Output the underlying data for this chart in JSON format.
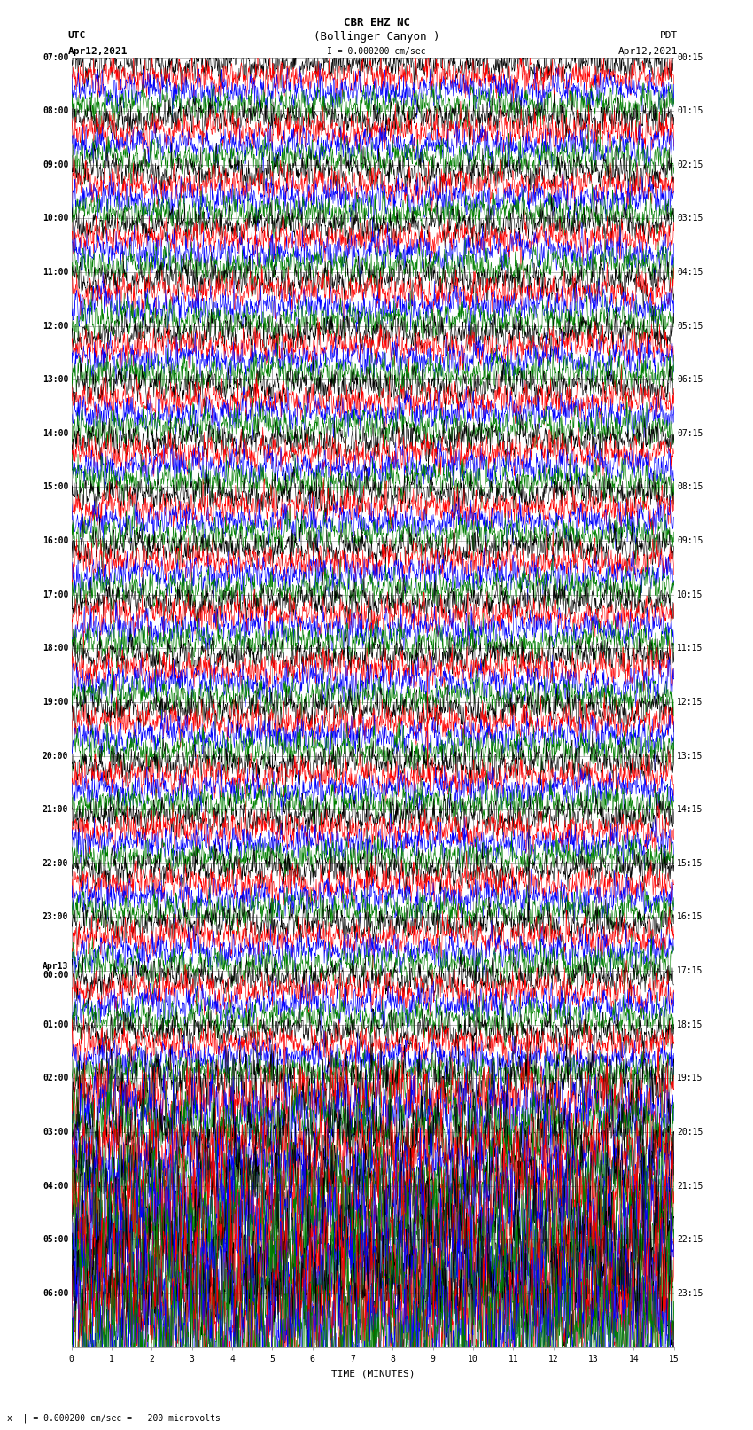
{
  "title_line1": "CBR EHZ NC",
  "title_line2": "(Bollinger Canyon )",
  "scale_label": "I = 0.000200 cm/sec",
  "left_header": "UTC",
  "left_date": "Apr12,2021",
  "right_header": "PDT",
  "right_date": "Apr12,2021",
  "bottom_label": "TIME (MINUTES)",
  "bottom_note": "x  | = 0.000200 cm/sec =   200 microvolts",
  "xlabel_ticks": [
    0,
    1,
    2,
    3,
    4,
    5,
    6,
    7,
    8,
    9,
    10,
    11,
    12,
    13,
    14,
    15
  ],
  "background_color": "#ffffff",
  "trace_colors": [
    "black",
    "red",
    "blue",
    "green"
  ],
  "utc_labels": [
    "07:00",
    "08:00",
    "09:00",
    "10:00",
    "11:00",
    "12:00",
    "13:00",
    "14:00",
    "15:00",
    "16:00",
    "17:00",
    "18:00",
    "19:00",
    "20:00",
    "21:00",
    "22:00",
    "23:00",
    "Apr13\n00:00",
    "01:00",
    "02:00",
    "03:00",
    "04:00",
    "05:00",
    "06:00"
  ],
  "pdt_labels": [
    "00:15",
    "01:15",
    "02:15",
    "03:15",
    "04:15",
    "05:15",
    "06:15",
    "07:15",
    "08:15",
    "09:15",
    "10:15",
    "11:15",
    "12:15",
    "13:15",
    "14:15",
    "15:15",
    "16:15",
    "17:15",
    "18:15",
    "19:15",
    "20:15",
    "21:15",
    "22:15",
    "23:15"
  ],
  "n_rows": 24,
  "traces_per_row": 4,
  "fig_width": 8.5,
  "fig_height": 16.13,
  "dpi": 100,
  "plot_bg": "#ffffff",
  "vgrid_color": "#888888",
  "hgrid_color": "#888888",
  "vgrid_linewidth": 0.5,
  "hgrid_linewidth": 0.4,
  "trace_linewidth": 0.4,
  "font_size_title": 9,
  "font_size_labels": 8,
  "font_size_axis": 7,
  "font_size_note": 7,
  "font_family": "monospace",
  "noise_amp_base": 0.012,
  "noise_amp_late": 0.04
}
